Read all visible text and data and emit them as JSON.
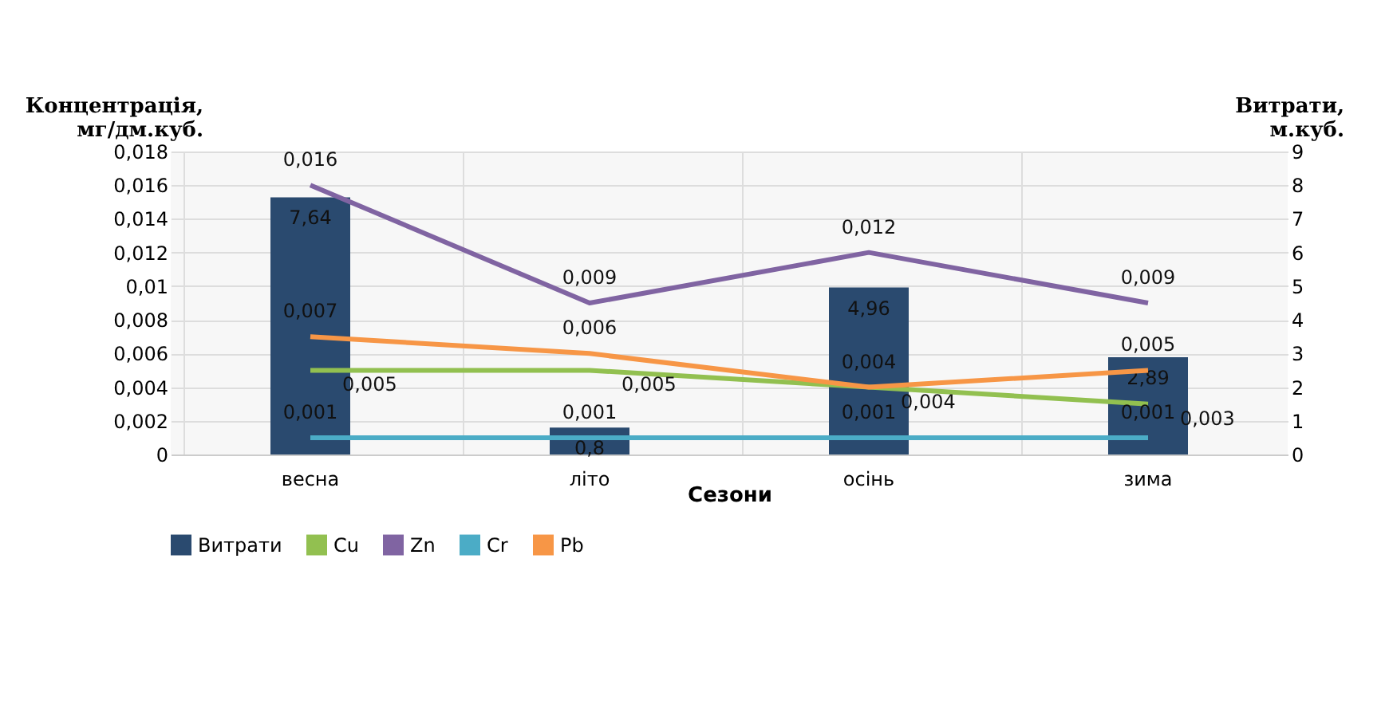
{
  "chart_data": {
    "type": "bar",
    "xlabel": "Сезони",
    "ylabel": "Концентрація,\nмг/дм.куб.",
    "y2label": "Витрати,\nм.куб.",
    "categories": [
      "весна",
      "літо",
      "осінь",
      "зима"
    ],
    "series": [
      {
        "name": "Витрати",
        "axis": "y2",
        "color": "#2a4a6f",
        "values": [
          7.64,
          0.8,
          4.96,
          2.89
        ],
        "value_labels": [
          "7,64",
          "0,8",
          "4,96",
          "2,89"
        ]
      },
      {
        "name": "Cu",
        "type": "line",
        "color": "#92c050",
        "values": [
          0.005,
          0.005,
          0.004,
          0.003
        ],
        "value_labels": [
          "0,005",
          "0,005",
          "0,004",
          "0,003"
        ]
      },
      {
        "name": "Zn",
        "type": "line",
        "color": "#8064a2",
        "values": [
          0.016,
          0.009,
          0.012,
          0.009
        ],
        "value_labels": [
          "0,016",
          "0,009",
          "0,012",
          "0,009"
        ]
      },
      {
        "name": "Cr",
        "type": "line",
        "color": "#4bacc6",
        "values": [
          0.001,
          0.001,
          0.001,
          0.001
        ],
        "value_labels": [
          "0,001",
          "0,001",
          "0,001",
          "0,001"
        ]
      },
      {
        "name": "Pb",
        "type": "line",
        "color": "#f79646",
        "values": [
          0.007,
          0.006,
          0.004,
          0.005
        ],
        "value_labels": [
          "0,007",
          "0,006",
          "0,004",
          "0,005"
        ]
      }
    ],
    "ylim": [
      0,
      0.018
    ],
    "yticks": [
      0,
      {
        "value": 0.002,
        "label": "0,002"
      },
      {
        "value": 0.004,
        "label": "0,004"
      },
      {
        "value": 0.006,
        "label": "0,006"
      },
      {
        "value": 0.008,
        "label": "0,008"
      },
      {
        "value": 0.01,
        "label": "0,01"
      },
      {
        "value": 0.012,
        "label": "0,012"
      },
      {
        "value": 0.014,
        "label": "0,014"
      },
      {
        "value": 0.016,
        "label": "0,016"
      },
      {
        "value": 0.018,
        "label": "0,018"
      }
    ],
    "y2lim": [
      0,
      9
    ],
    "y2ticks": [
      0,
      1,
      2,
      3,
      4,
      5,
      6,
      7,
      8,
      9
    ],
    "grid": true,
    "legend": "bottom",
    "marker": "none",
    "line_style": "solid"
  }
}
